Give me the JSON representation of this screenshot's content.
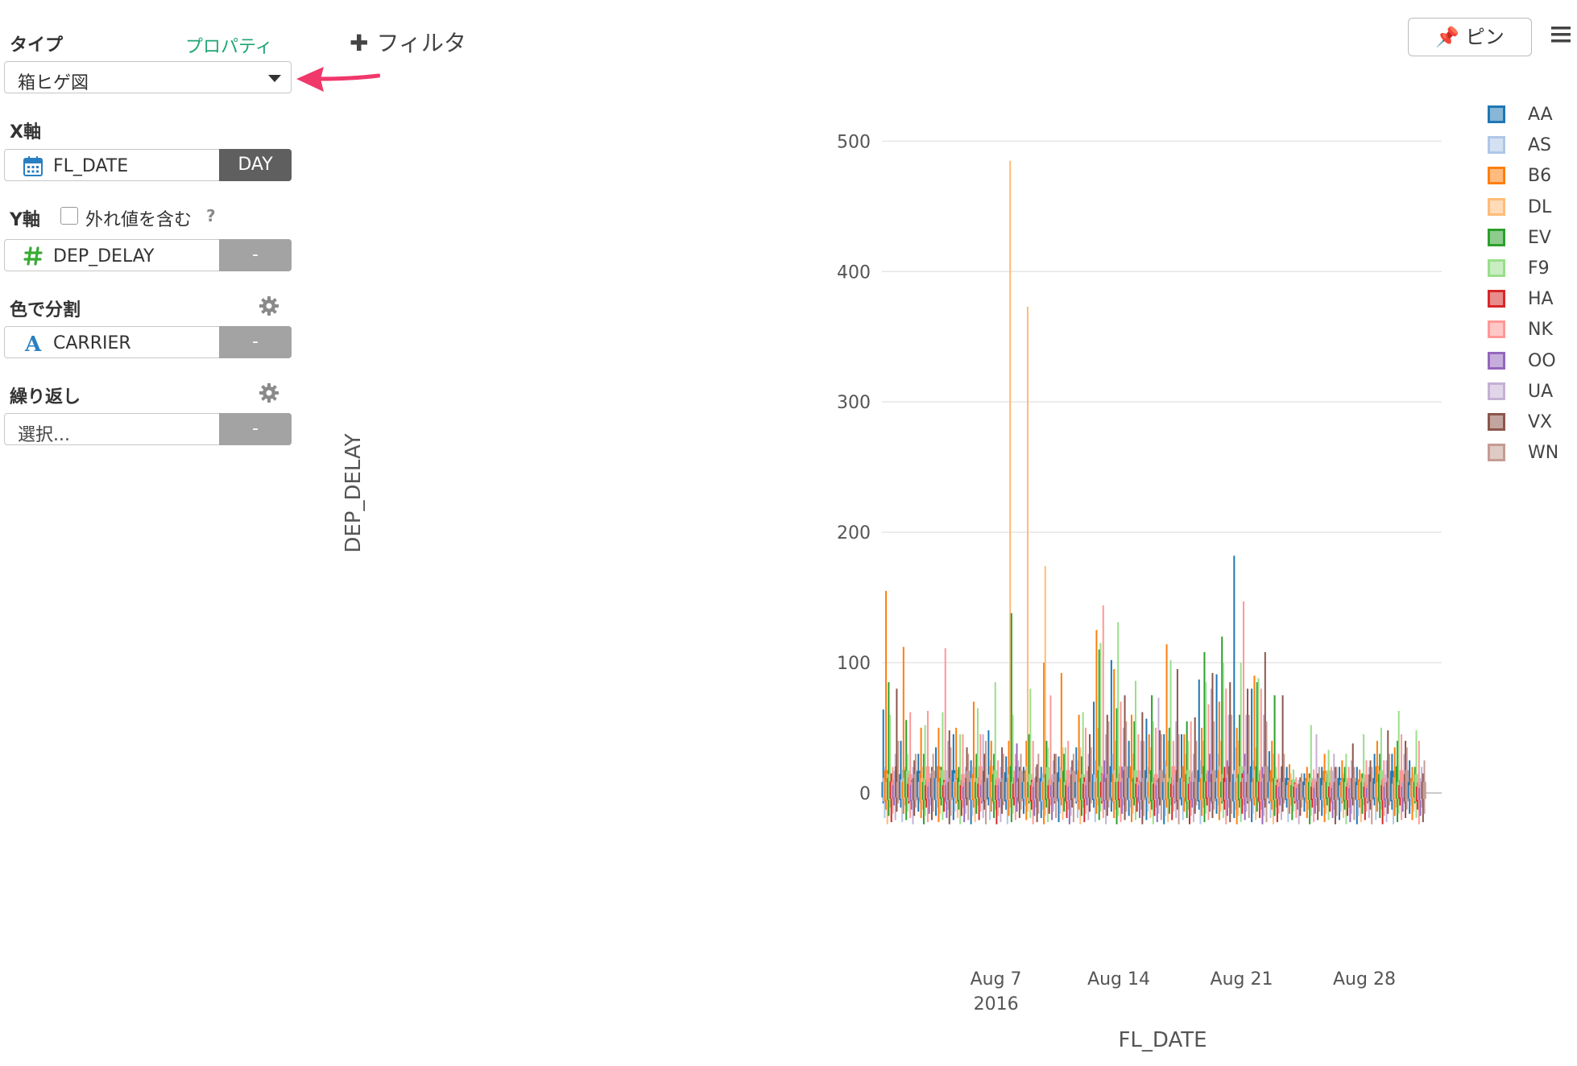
{
  "sidebar": {
    "type_label": "タイプ",
    "properties_link": "プロパティ",
    "chart_type_value": "箱ヒゲ図",
    "x_axis_label": "X軸",
    "x_field": "FL_DATE",
    "x_agg": "DAY",
    "y_axis_label": "Y軸",
    "outlier_label": "外れ値を含む",
    "help_mark": "?",
    "y_field": "DEP_DELAY",
    "y_agg": "-",
    "color_label": "色で分割",
    "color_field": "CARRIER",
    "color_agg": "-",
    "repeat_label": "繰り返し",
    "repeat_placeholder": "選択...",
    "repeat_agg": "-"
  },
  "toolbar": {
    "filter_label": "フィルタ",
    "pin_label": "ピン"
  },
  "colors": {
    "accent_green": "#1ea672",
    "arrow_pink": "#f0386b"
  },
  "chart_data": {
    "type": "box",
    "xlabel": "FL_DATE",
    "ylabel": "DEP_DELAY",
    "ylim": [
      -60,
      520
    ],
    "yticks": [
      0,
      100,
      200,
      300,
      400,
      500
    ],
    "xticks": [
      {
        "date": "2016-08-07",
        "label": "Aug 7",
        "sub": "2016"
      },
      {
        "date": "2016-08-14",
        "label": "Aug 14",
        "sub": ""
      },
      {
        "date": "2016-08-21",
        "label": "Aug 21",
        "sub": ""
      },
      {
        "date": "2016-08-28",
        "label": "Aug 28",
        "sub": ""
      }
    ],
    "xrange": [
      "2016-07-31T12:00",
      "2016-09-01T12:00"
    ],
    "legend_position": "right",
    "series": [
      {
        "name": "AA",
        "color": "#1f77b4"
      },
      {
        "name": "AS",
        "color": "#aec7e8"
      },
      {
        "name": "B6",
        "color": "#ff7f0e"
      },
      {
        "name": "DL",
        "color": "#ffbb78"
      },
      {
        "name": "EV",
        "color": "#2ca02c"
      },
      {
        "name": "F9",
        "color": "#98df8a"
      },
      {
        "name": "HA",
        "color": "#d62728"
      },
      {
        "name": "NK",
        "color": "#ff9896"
      },
      {
        "name": "OO",
        "color": "#9467bd"
      },
      {
        "name": "UA",
        "color": "#c5b0d5"
      },
      {
        "name": "VX",
        "color": "#8c564b"
      },
      {
        "name": "WN",
        "color": "#c49c94"
      }
    ],
    "dates": [
      "2016-08-01",
      "2016-08-02",
      "2016-08-03",
      "2016-08-04",
      "2016-08-05",
      "2016-08-06",
      "2016-08-07",
      "2016-08-08",
      "2016-08-09",
      "2016-08-10",
      "2016-08-11",
      "2016-08-12",
      "2016-08-13",
      "2016-08-14",
      "2016-08-15",
      "2016-08-16",
      "2016-08-17",
      "2016-08-18",
      "2016-08-19",
      "2016-08-20",
      "2016-08-21",
      "2016-08-22",
      "2016-08-23",
      "2016-08-24",
      "2016-08-25",
      "2016-08-26",
      "2016-08-27",
      "2016-08-28",
      "2016-08-29",
      "2016-08-30",
      "2016-08-31"
    ],
    "whisker_high": [
      [
        64,
        20,
        155,
        15,
        85,
        60,
        15,
        20,
        10,
        30,
        80,
        40
      ],
      [
        40,
        18,
        112,
        20,
        56,
        30,
        12,
        62,
        10,
        20,
        25,
        30
      ],
      [
        30,
        15,
        50,
        20,
        30,
        52,
        10,
        63,
        8,
        15,
        20,
        30
      ],
      [
        35,
        20,
        50,
        18,
        20,
        62,
        10,
        111,
        10,
        40,
        48,
        35
      ],
      [
        45,
        15,
        50,
        18,
        20,
        45,
        10,
        45,
        8,
        20,
        35,
        30
      ],
      [
        25,
        20,
        70,
        20,
        30,
        65,
        12,
        45,
        10,
        45,
        30,
        40
      ],
      [
        48,
        25,
        40,
        20,
        30,
        85,
        10,
        25,
        10,
        20,
        35,
        30
      ],
      [
        28,
        20,
        40,
        485,
        138,
        60,
        12,
        30,
        38,
        25,
        20,
        30
      ],
      [
        20,
        15,
        40,
        373,
        45,
        80,
        10,
        40,
        8,
        20,
        22,
        30
      ],
      [
        20,
        15,
        100,
        174,
        40,
        35,
        10,
        75,
        10,
        25,
        30,
        30
      ],
      [
        28,
        20,
        92,
        35,
        30,
        35,
        10,
        40,
        8,
        20,
        25,
        30
      ],
      [
        35,
        25,
        60,
        35,
        28,
        62,
        12,
        50,
        10,
        30,
        45,
        35
      ],
      [
        70,
        25,
        125,
        50,
        110,
        115,
        15,
        144,
        25,
        45,
        60,
        55
      ],
      [
        102,
        30,
        95,
        40,
        65,
        131,
        15,
        70,
        20,
        50,
        75,
        55
      ],
      [
        40,
        20,
        60,
        30,
        55,
        86,
        12,
        45,
        10,
        40,
        62,
        40
      ],
      [
        57,
        20,
        45,
        35,
        75,
        55,
        12,
        50,
        10,
        73,
        48,
        45
      ],
      [
        45,
        25,
        114,
        40,
        50,
        102,
        12,
        40,
        10,
        55,
        95,
        45
      ],
      [
        45,
        20,
        45,
        30,
        55,
        40,
        12,
        55,
        15,
        30,
        58,
        40
      ],
      [
        87,
        25,
        50,
        40,
        108,
        85,
        15,
        68,
        30,
        80,
        92,
        55
      ],
      [
        91,
        30,
        70,
        40,
        120,
        100,
        20,
        80,
        25,
        60,
        85,
        60
      ],
      [
        182,
        35,
        50,
        40,
        60,
        100,
        15,
        147,
        30,
        60,
        80,
        60
      ],
      [
        80,
        25,
        90,
        35,
        85,
        88,
        15,
        80,
        20,
        60,
        108,
        55
      ],
      [
        32,
        15,
        40,
        30,
        75,
        20,
        10,
        30,
        8,
        20,
        75,
        30
      ],
      [
        20,
        10,
        22,
        15,
        10,
        18,
        8,
        12,
        6,
        10,
        12,
        15
      ],
      [
        15,
        10,
        20,
        15,
        15,
        52,
        8,
        18,
        6,
        45,
        15,
        20
      ],
      [
        20,
        10,
        30,
        15,
        15,
        33,
        8,
        20,
        6,
        30,
        20,
        20
      ],
      [
        20,
        10,
        25,
        15,
        20,
        30,
        8,
        20,
        6,
        25,
        38,
        20
      ],
      [
        20,
        10,
        18,
        15,
        15,
        45,
        8,
        25,
        6,
        20,
        25,
        20
      ],
      [
        30,
        12,
        40,
        20,
        30,
        50,
        10,
        25,
        8,
        25,
        48,
        30
      ],
      [
        30,
        12,
        35,
        20,
        40,
        63,
        10,
        45,
        8,
        30,
        40,
        35
      ],
      [
        25,
        10,
        20,
        15,
        20,
        48,
        8,
        40,
        6,
        20,
        15,
        25
      ]
    ]
  }
}
